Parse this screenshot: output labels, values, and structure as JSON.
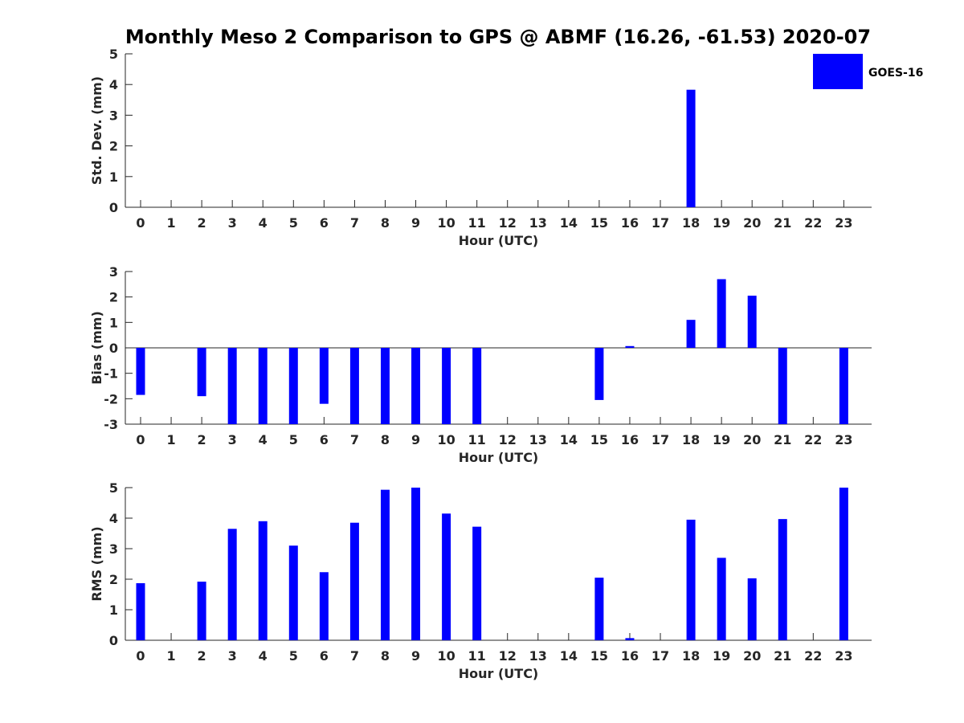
{
  "chart_data": {
    "type": "bar",
    "title": "Monthly Meso 2 Comparison to GPS @ ABMF (16.26, -61.53) 2020-07",
    "legend": {
      "position": "top-right",
      "entries": [
        {
          "name": "GOES-16",
          "color": "#0000ff"
        }
      ]
    },
    "bar_color": "#0000ff",
    "categories": [
      "0",
      "1",
      "2",
      "3",
      "4",
      "5",
      "6",
      "7",
      "8",
      "9",
      "10",
      "11",
      "12",
      "13",
      "14",
      "15",
      "16",
      "17",
      "18",
      "19",
      "20",
      "21",
      "22",
      "23"
    ],
    "panels": [
      {
        "id": "std",
        "ylabel": "Std. Dev. (mm)",
        "xlabel": "Hour (UTC)",
        "ylim": [
          0,
          5
        ],
        "yticks": [
          "0",
          "1",
          "2",
          "3",
          "4",
          "5"
        ],
        "series": [
          {
            "name": "GOES-16",
            "values": [
              0,
              0,
              0,
              0,
              0,
              0,
              0,
              0,
              0,
              0,
              0,
              0,
              0,
              0,
              0,
              0,
              0,
              0,
              3.83,
              0,
              0,
              0,
              0,
              0
            ]
          }
        ]
      },
      {
        "id": "bias",
        "ylabel": "Bias (mm)",
        "xlabel": "Hour (UTC)",
        "ylim": [
          -3,
          3
        ],
        "yticks": [
          "-3",
          "-2",
          "-1",
          "0",
          "1",
          "2",
          "3"
        ],
        "series": [
          {
            "name": "GOES-16",
            "values": [
              -1.85,
              0,
              -1.9,
              -3,
              -3,
              -3,
              -2.2,
              -3,
              -3,
              -3,
              -3,
              -3,
              0,
              0,
              0,
              -2.05,
              0.07,
              0,
              1.1,
              2.7,
              2.05,
              -3,
              0,
              -3
            ]
          }
        ]
      },
      {
        "id": "rms",
        "ylabel": "RMS (mm)",
        "xlabel": "Hour (UTC)",
        "ylim": [
          0,
          5
        ],
        "yticks": [
          "0",
          "1",
          "2",
          "3",
          "4",
          "5"
        ],
        "series": [
          {
            "name": "GOES-16",
            "values": [
              1.87,
              0,
              1.92,
              3.65,
              3.9,
              3.1,
              2.23,
              3.85,
              4.93,
              5.0,
              4.15,
              3.72,
              0,
              0,
              0,
              2.05,
              0.07,
              0,
              3.95,
              2.7,
              2.03,
              3.97,
              0,
              5.0
            ]
          }
        ]
      }
    ]
  }
}
